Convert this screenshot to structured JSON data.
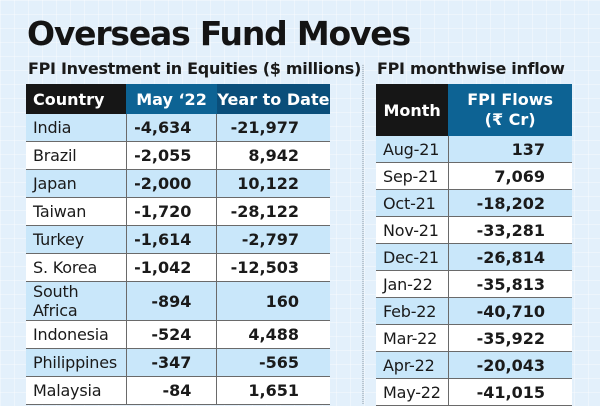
{
  "title": "Overseas Fund Moves",
  "left_table": {
    "subtitle": "FPI Investment in Equities ($ millions)",
    "headers": [
      "Country",
      "May ‘22",
      "Year to Date"
    ],
    "rows": [
      {
        "country": "India",
        "may22": "-4,634",
        "ytd": "-21,977"
      },
      {
        "country": "Brazil",
        "may22": "-2,055",
        "ytd": "8,942"
      },
      {
        "country": "Japan",
        "may22": "-2,000",
        "ytd": "10,122"
      },
      {
        "country": "Taiwan",
        "may22": "-1,720",
        "ytd": "-28,122"
      },
      {
        "country": "Turkey",
        "may22": "-1,614",
        "ytd": "-2,797"
      },
      {
        "country": "S. Korea",
        "may22": "-1,042",
        "ytd": "-12,503"
      },
      {
        "country": "South Africa",
        "may22": "-894",
        "ytd": "160"
      },
      {
        "country": "Indonesia",
        "may22": "-524",
        "ytd": "4,488"
      },
      {
        "country": "Philippines",
        "may22": "-347",
        "ytd": "-565"
      },
      {
        "country": "Malaysia",
        "may22": "-84",
        "ytd": "1,651"
      }
    ]
  },
  "right_table": {
    "subtitle": "FPI monthwise inflow",
    "headers": [
      "Month",
      "FPI Flows",
      "(₹ Cr)"
    ],
    "rows": [
      {
        "month": "Aug-21",
        "flow": "137"
      },
      {
        "month": "Sep-21",
        "flow": "7,069"
      },
      {
        "month": "Oct-21",
        "flow": "-18,202"
      },
      {
        "month": "Nov-21",
        "flow": "-33,281"
      },
      {
        "month": "Dec-21",
        "flow": "-26,814"
      },
      {
        "month": "Jan-22",
        "flow": "-35,813"
      },
      {
        "month": "Feb-22",
        "flow": "-40,710"
      },
      {
        "month": "Mar-22",
        "flow": "-35,922"
      },
      {
        "month": "Apr-22",
        "flow": "-20,043"
      },
      {
        "month": "May-22",
        "flow": "-41,015"
      }
    ]
  },
  "colors": {
    "background": "#e3f0fb",
    "header_dark": "#161616",
    "header_blue": "#0d6394",
    "header_blue_dark": "#0a4e7a",
    "row_alt": "#c9e7fa",
    "row_plain": "#ffffff"
  }
}
